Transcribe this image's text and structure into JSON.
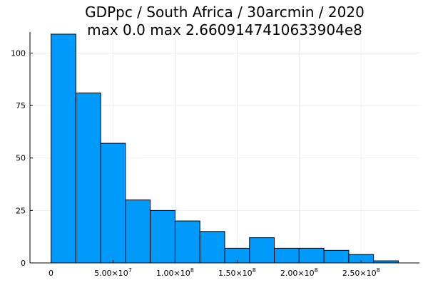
{
  "chart_data": {
    "type": "bar",
    "title_line1": "GDPpc / South Africa / 30arcmin / 2020",
    "title_line2": "max 0.0  max 2.6609147410633904e8",
    "bin_width": 20000000,
    "bins": [
      {
        "start": 0,
        "end": 20000000,
        "count": 109
      },
      {
        "start": 20000000,
        "end": 40000000,
        "count": 81
      },
      {
        "start": 40000000,
        "end": 60000000,
        "count": 57
      },
      {
        "start": 60000000,
        "end": 80000000,
        "count": 30
      },
      {
        "start": 80000000,
        "end": 100000000,
        "count": 25
      },
      {
        "start": 100000000,
        "end": 120000000,
        "count": 20
      },
      {
        "start": 120000000,
        "end": 140000000,
        "count": 15
      },
      {
        "start": 140000000,
        "end": 160000000,
        "count": 7
      },
      {
        "start": 160000000,
        "end": 180000000,
        "count": 12
      },
      {
        "start": 180000000,
        "end": 200000000,
        "count": 7
      },
      {
        "start": 200000000,
        "end": 220000000,
        "count": 7
      },
      {
        "start": 220000000,
        "end": 240000000,
        "count": 6
      },
      {
        "start": 240000000,
        "end": 260000000,
        "count": 4
      },
      {
        "start": 260000000,
        "end": 280000000,
        "count": 1
      }
    ],
    "xlim": [
      -17000000,
      297000000
    ],
    "ylim": [
      0,
      110
    ],
    "x_ticks": [
      {
        "value": 0,
        "mantissa": "0",
        "exponent": ""
      },
      {
        "value": 50000000,
        "mantissa": "5.00×10",
        "exponent": "7"
      },
      {
        "value": 100000000,
        "mantissa": "1.00×10",
        "exponent": "8"
      },
      {
        "value": 150000000,
        "mantissa": "1.50×10",
        "exponent": "8"
      },
      {
        "value": 200000000,
        "mantissa": "2.00×10",
        "exponent": "8"
      },
      {
        "value": 250000000,
        "mantissa": "2.50×10",
        "exponent": "8"
      }
    ],
    "y_ticks": [
      {
        "value": 0,
        "label": "0"
      },
      {
        "value": 25,
        "label": "25"
      },
      {
        "value": 50,
        "label": "50"
      },
      {
        "value": 75,
        "label": "75"
      },
      {
        "value": 100,
        "label": "100"
      }
    ],
    "grid": true,
    "legend": false,
    "bar_color": "#009AFA",
    "edge_color": "#000000",
    "grid_color": "#EBEBEB"
  }
}
